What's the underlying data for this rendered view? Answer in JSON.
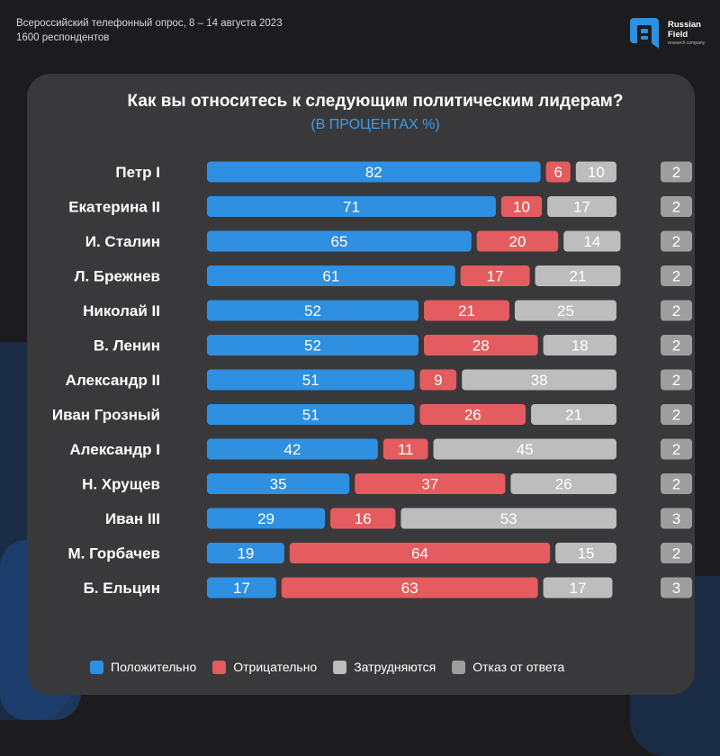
{
  "header": {
    "survey_line1": "Всероссийский телефонный опрос, 8 – 14 августа 2023",
    "survey_line2": "1600 респондентов",
    "brand_line1": "Russian",
    "brand_line2": "Field",
    "brand_sub": "research company"
  },
  "colors": {
    "positive": "#2f8fe0",
    "negative": "#e45c5f",
    "difficult": "#bdbdbd",
    "refused": "#9e9e9e"
  },
  "chart_data": {
    "type": "bar",
    "orientation": "horizontal",
    "stacked": true,
    "title": "Как вы относитесь к следующим политическим лидерам?",
    "subtitle": "(В ПРОЦЕНТАХ %)",
    "categories": [
      "Петр I",
      "Екатерина II",
      "И. Сталин",
      "Л. Брежнев",
      "Николай II",
      "В. Ленин",
      "Александр II",
      "Иван Грозный",
      "Александр I",
      "Н. Хрущев",
      "Иван III",
      "М. Горбачев",
      "Б. Ельцин"
    ],
    "series": [
      {
        "name": "Положительно",
        "values": [
          82,
          71,
          65,
          61,
          52,
          52,
          51,
          51,
          42,
          35,
          29,
          19,
          17
        ]
      },
      {
        "name": "Отрицательно",
        "values": [
          6,
          10,
          20,
          17,
          21,
          28,
          9,
          26,
          11,
          37,
          16,
          64,
          63
        ]
      },
      {
        "name": "Затрудняются",
        "values": [
          10,
          17,
          14,
          21,
          25,
          18,
          38,
          21,
          45,
          26,
          53,
          15,
          17
        ]
      },
      {
        "name": "Отказ от ответа",
        "values": [
          2,
          2,
          2,
          2,
          2,
          2,
          2,
          2,
          2,
          2,
          3,
          2,
          3
        ]
      }
    ],
    "legend_position": "bottom"
  }
}
